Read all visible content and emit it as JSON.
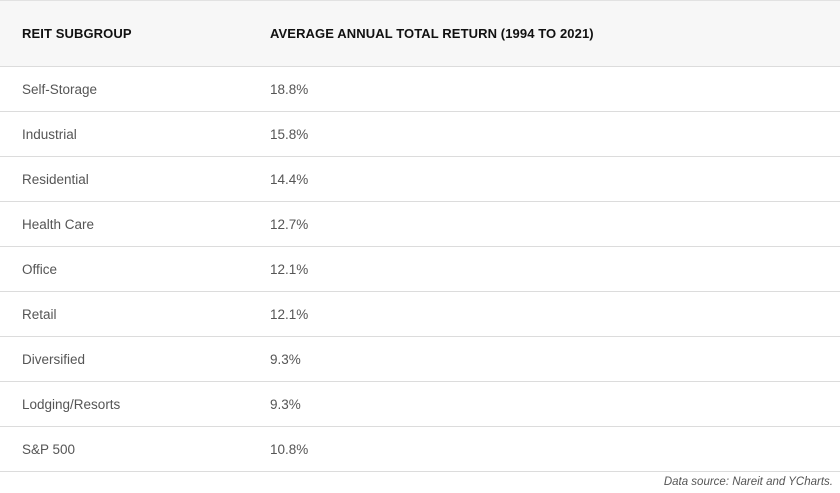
{
  "table": {
    "headers": [
      "REIT SUBGROUP",
      "AVERAGE ANNUAL TOTAL RETURN (1994 TO 2021)"
    ],
    "rows": [
      [
        "Self-Storage",
        "18.8%"
      ],
      [
        "Industrial",
        "15.8%"
      ],
      [
        "Residential",
        "14.4%"
      ],
      [
        "Health Care",
        "12.7%"
      ],
      [
        "Office",
        "12.1%"
      ],
      [
        "Retail",
        "12.1%"
      ],
      [
        "Diversified",
        "9.3%"
      ],
      [
        "Lodging/Resorts",
        "9.3%"
      ],
      [
        "S&P 500",
        "10.8%"
      ]
    ]
  },
  "source_note": "Data source: Nareit and YCharts."
}
